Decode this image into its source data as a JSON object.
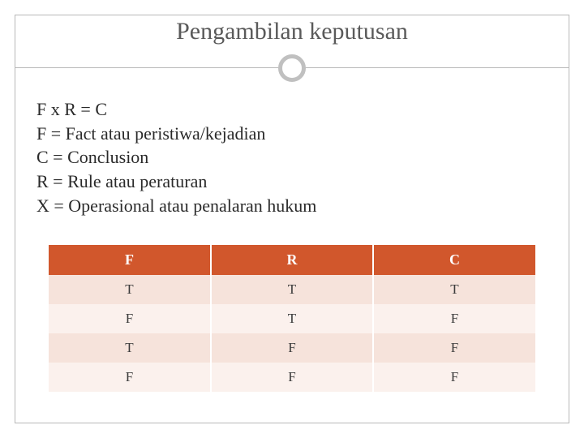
{
  "title": "Pengambilan keputusan",
  "lines": {
    "l0": "F x R = C",
    "l1": "F = Fact atau peristiwa/kejadian",
    "l2": "C = Conclusion",
    "l3": "R = Rule atau peraturan",
    "l4": "X = Operasional atau penalaran hukum"
  },
  "table": {
    "type": "table",
    "columns": [
      "F",
      "R",
      "C"
    ],
    "rows": [
      [
        "T",
        "T",
        "T"
      ],
      [
        "F",
        "T",
        "F"
      ],
      [
        "T",
        "F",
        "F"
      ],
      [
        "F",
        "F",
        "F"
      ]
    ],
    "header_bg": "#d1572c",
    "header_fg": "#ffffff",
    "row_band_a": "#f6e3db",
    "row_band_b": "#fbf1ed",
    "cell_fg": "#3a3a3a",
    "header_fontsize": 18,
    "cell_fontsize": 17,
    "border_color": "#ffffff"
  },
  "styling": {
    "title_color": "#5a5a5a",
    "title_fontsize": 30,
    "text_color": "#2a2a2a",
    "text_fontsize": 22,
    "frame_border_color": "#b8b8b8",
    "ring_color": "#c0c0c0",
    "background_color": "#ffffff"
  }
}
